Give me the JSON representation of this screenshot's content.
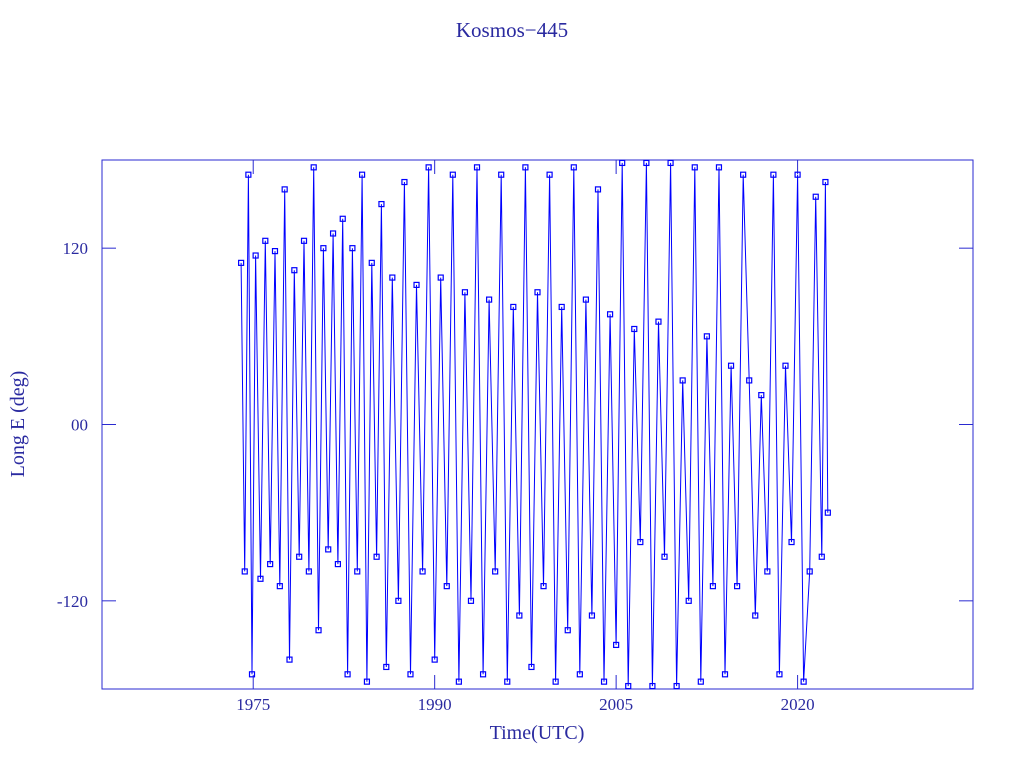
{
  "chart_data": {
    "type": "line",
    "title": "Kosmos−445",
    "xlabel": "Time(UTC)",
    "ylabel": "Long E (deg)",
    "color": "#0000ff",
    "xlim": [
      1962.5,
      2034.5
    ],
    "xticks": [
      1975,
      1990,
      2005,
      2020
    ],
    "ylim": [
      -180,
      180
    ],
    "yticks": [
      120,
      {
        "value": 0,
        "label": "00"
      },
      -120
    ],
    "x": [
      1974.0,
      1974.3,
      1974.6,
      1974.9,
      1975.2,
      1975.6,
      1976.0,
      1976.4,
      1976.8,
      1977.2,
      1977.6,
      1978.0,
      1978.4,
      1978.8,
      1979.2,
      1979.6,
      1980.0,
      1980.4,
      1980.8,
      1981.2,
      1981.6,
      1982.0,
      1982.4,
      1982.8,
      1983.2,
      1983.6,
      1984.0,
      1984.4,
      1984.8,
      1985.2,
      1985.6,
      1986.0,
      1986.5,
      1987.0,
      1987.5,
      1988.0,
      1988.5,
      1989.0,
      1989.5,
      1990.0,
      1990.5,
      1991.0,
      1991.5,
      1992.0,
      1992.5,
      1993.0,
      1993.5,
      1994.0,
      1994.5,
      1995.0,
      1995.5,
      1996.0,
      1996.5,
      1997.0,
      1997.5,
      1998.0,
      1998.5,
      1999.0,
      1999.5,
      2000.0,
      2000.5,
      2001.0,
      2001.5,
      2002.0,
      2002.5,
      2003.0,
      2003.5,
      2004.0,
      2004.5,
      2005.0,
      2005.5,
      2006.0,
      2006.5,
      2007.0,
      2007.5,
      2008.0,
      2008.5,
      2009.0,
      2009.5,
      2010.0,
      2010.5,
      2011.0,
      2011.5,
      2012.0,
      2012.5,
      2013.0,
      2013.5,
      2014.0,
      2014.5,
      2015.0,
      2015.5,
      2016.0,
      2016.5,
      2017.0,
      2017.5,
      2018.0,
      2018.5,
      2019.0,
      2019.5,
      2020.0,
      2020.5,
      2021.0,
      2021.5,
      2022.0,
      2022.3,
      2022.5
    ],
    "values": [
      110,
      -100,
      170,
      -170,
      115,
      -105,
      125,
      -95,
      118,
      -110,
      160,
      -160,
      105,
      -90,
      125,
      -100,
      175,
      -140,
      120,
      -85,
      130,
      -95,
      140,
      -170,
      120,
      -100,
      170,
      -175,
      110,
      -90,
      150,
      -165,
      100,
      -120,
      165,
      -170,
      95,
      -100,
      175,
      -160,
      100,
      -110,
      170,
      -175,
      90,
      -120,
      175,
      -170,
      85,
      -100,
      170,
      -175,
      80,
      -130,
      175,
      -165,
      90,
      -110,
      170,
      -175,
      80,
      -140,
      175,
      -170,
      85,
      -130,
      160,
      -175,
      75,
      -150,
      178,
      -178,
      65,
      -80,
      178,
      -178,
      70,
      -90,
      178,
      -178,
      30,
      -120,
      175,
      -175,
      60,
      -110,
      175,
      -170,
      40,
      -110,
      170,
      30,
      -130,
      20,
      -100,
      170,
      -170,
      40,
      -80,
      170,
      -175,
      -100,
      155,
      -90,
      165,
      -60
    ]
  }
}
